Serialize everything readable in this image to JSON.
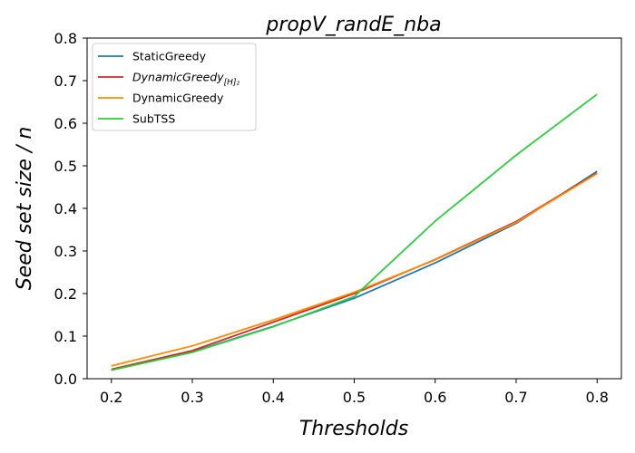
{
  "chart_data": {
    "type": "line",
    "title": "propV_randE_nba",
    "xlabel": "Thresholds",
    "ylabel": "Seed set size / n",
    "x": [
      0.2,
      0.3,
      0.4,
      0.5,
      0.6,
      0.7,
      0.8
    ],
    "xlim": [
      0.17,
      0.83
    ],
    "ylim": [
      0.0,
      0.8
    ],
    "xticks": [
      "0.2",
      "0.3",
      "0.4",
      "0.5",
      "0.6",
      "0.7",
      "0.8"
    ],
    "yticks": [
      "0.0",
      "0.1",
      "0.2",
      "0.3",
      "0.4",
      "0.5",
      "0.6",
      "0.7",
      "0.8"
    ],
    "grid": false,
    "legend_position": "top-left",
    "series": [
      {
        "name": "StaticGreedy",
        "color": "#1f77b4",
        "values": [
          0.021,
          0.063,
          0.123,
          0.189,
          0.272,
          0.365,
          0.487
        ]
      },
      {
        "name": "DynamicGreedy",
        "name_subscript": "[H]₂",
        "color": "#d62728",
        "values": [
          0.022,
          0.066,
          0.133,
          0.2,
          0.28,
          0.369,
          0.483
        ]
      },
      {
        "name": "DynamicGreedy",
        "color": "#ff8c00",
        "values": [
          0.03,
          0.077,
          0.138,
          0.203,
          0.279,
          0.367,
          0.482
        ]
      },
      {
        "name": "SubTSS",
        "color": "#2ecc40",
        "values": [
          0.02,
          0.062,
          0.122,
          0.193,
          0.37,
          0.525,
          0.668
        ]
      }
    ]
  }
}
